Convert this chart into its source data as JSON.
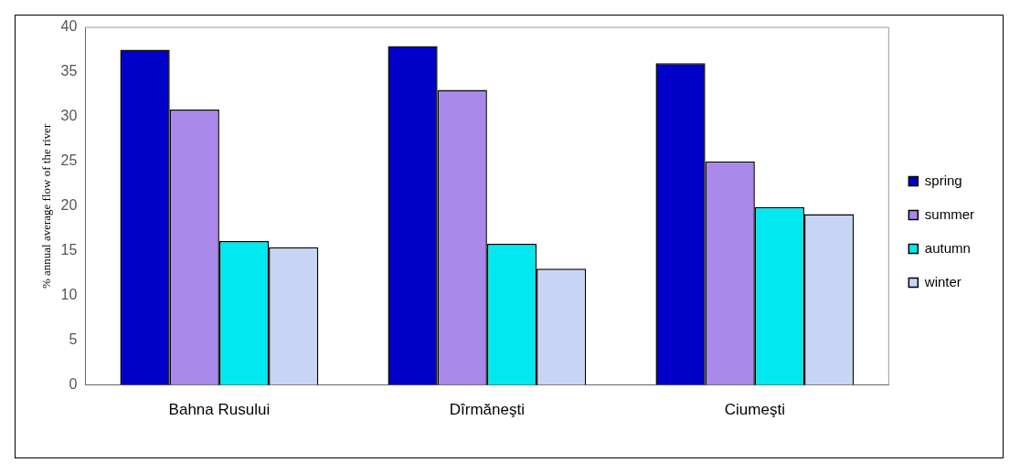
{
  "chart_data": {
    "type": "bar",
    "ylabel": "% annual average flow of the river",
    "categories": [
      "Bahna Rusului",
      "Dîrmăneşti",
      "Ciumeşti"
    ],
    "series": [
      {
        "name": "spring",
        "color": "#0000c8",
        "values": [
          37.5,
          37.9,
          36.0
        ]
      },
      {
        "name": "summer",
        "color": "#a888e8",
        "values": [
          30.8,
          33.0,
          25.0
        ]
      },
      {
        "name": "autumn",
        "color": "#00e8f0",
        "values": [
          16.1,
          15.8,
          19.9
        ]
      },
      {
        "name": "winter",
        "color": "#c8d4f4",
        "values": [
          15.4,
          13.0,
          19.1
        ]
      }
    ],
    "ylim": [
      0,
      40
    ],
    "yticks": [
      0,
      5,
      10,
      15,
      20,
      25,
      30,
      35,
      40
    ],
    "grid": false,
    "legend": "right"
  }
}
